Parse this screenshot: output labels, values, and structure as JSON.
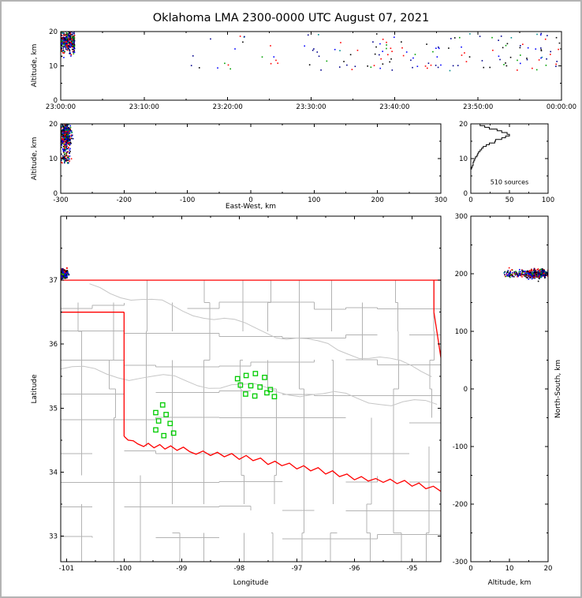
{
  "title": "Oklahoma LMA 2300-0000 UTC August 07, 2021",
  "colors": {
    "background": "#ffffff",
    "frame": "#b4b4b4",
    "axis": "#000000",
    "county_line": "#b3b3b3",
    "river_line": "#c6c6c6",
    "state_border": "#ff0000",
    "station_marker": "#00cc00",
    "histogram_line": "#000000",
    "source_palette": [
      "#00008b",
      "#0000ff",
      "#000000",
      "#ff0000",
      "#00a000",
      "#008b8b"
    ]
  },
  "chart_data": [
    {
      "id": "time_height_panel",
      "type": "scatter",
      "xlabel": "",
      "ylabel": "Altitude, km",
      "xlim_s": [
        0,
        3600
      ],
      "ylim_km": [
        0,
        20
      ],
      "xticks": [
        {
          "s": 0,
          "label": "23:00:00"
        },
        {
          "s": 600,
          "label": "23:10:00"
        },
        {
          "s": 1200,
          "label": "23:20:00"
        },
        {
          "s": 1800,
          "label": "23:30:00"
        },
        {
          "s": 2400,
          "label": "23:40:00"
        },
        {
          "s": 3000,
          "label": "23:50:00"
        },
        {
          "s": 3600,
          "label": "00:00:00"
        }
      ],
      "yticks_km": [
        0,
        10,
        20
      ]
    },
    {
      "id": "ew_height_panel",
      "type": "scatter",
      "xlabel": "East-West, km",
      "ylabel": "Altitude, km",
      "xlim_km": [
        -300,
        300
      ],
      "ylim_km": [
        0,
        20
      ],
      "xticks_km": [
        -300,
        -200,
        -100,
        0,
        100,
        200,
        300
      ],
      "yticks_km": [
        0,
        10,
        20
      ]
    },
    {
      "id": "altitude_histogram_panel",
      "type": "line",
      "annotation": "510 sources",
      "total_sources": 510,
      "xlim": [
        0,
        100
      ],
      "ylim_km": [
        0,
        20
      ],
      "xticks": [
        0,
        50,
        100
      ],
      "yticks_km": [
        0,
        10,
        20
      ],
      "bins": {
        "alt_start_km": 7.0,
        "alt_step_km": 0.5,
        "counts": [
          1,
          2,
          3,
          3,
          4,
          5,
          6,
          8,
          9,
          10,
          12,
          14,
          16,
          20,
          24,
          31,
          32,
          40,
          45,
          50,
          47,
          40,
          34,
          24,
          18,
          12
        ]
      }
    },
    {
      "id": "map_panel",
      "type": "scatter",
      "xlabel": "Longitude",
      "ylabel": "Latitude",
      "xlim_deg": [
        -101.1,
        -94.5
      ],
      "ylim_deg": [
        32.6,
        38.0
      ],
      "xticks_deg": [
        -101,
        -100,
        -99,
        -98,
        -97,
        -96,
        -95
      ],
      "yticks_deg": [
        33,
        34,
        35,
        36,
        37
      ],
      "stations_lon_lat": [
        [
          -99.33,
          35.05
        ],
        [
          -99.45,
          34.93
        ],
        [
          -99.27,
          34.9
        ],
        [
          -99.4,
          34.8
        ],
        [
          -99.2,
          34.76
        ],
        [
          -99.45,
          34.66
        ],
        [
          -99.31,
          34.57
        ],
        [
          -99.14,
          34.61
        ],
        [
          -98.03,
          35.46
        ],
        [
          -97.88,
          35.51
        ],
        [
          -97.72,
          35.54
        ],
        [
          -97.56,
          35.48
        ],
        [
          -97.98,
          35.36
        ],
        [
          -97.8,
          35.35
        ],
        [
          -97.64,
          35.33
        ],
        [
          -97.46,
          35.29
        ],
        [
          -97.89,
          35.22
        ],
        [
          -97.73,
          35.19
        ],
        [
          -97.52,
          35.24
        ],
        [
          -97.39,
          35.18
        ]
      ],
      "state_borders": [
        {
          "name": "kansas-37n",
          "pts": [
            [
              -101.1,
              37.0
            ],
            [
              -94.5,
              37.0
            ]
          ]
        },
        {
          "name": "ok-mo",
          "pts": [
            [
              -94.62,
              37.0
            ],
            [
              -94.62,
              36.5
            ]
          ]
        },
        {
          "name": "ok-ar",
          "pts": [
            [
              -94.62,
              36.5
            ],
            [
              -94.43,
              35.38
            ]
          ]
        },
        {
          "name": "panhandle-south",
          "pts": [
            [
              -101.1,
              36.5
            ],
            [
              -100.0,
              36.5
            ]
          ]
        },
        {
          "name": "ok-tx-west",
          "pts": [
            [
              -100.0,
              36.5
            ],
            [
              -100.0,
              34.56
            ]
          ]
        },
        {
          "name": "red-river",
          "pts": [
            [
              -100.0,
              34.56
            ],
            [
              -99.93,
              34.5
            ],
            [
              -99.84,
              34.49
            ],
            [
              -99.76,
              34.44
            ],
            [
              -99.66,
              34.4
            ],
            [
              -99.58,
              34.45
            ],
            [
              -99.48,
              34.38
            ],
            [
              -99.38,
              34.43
            ],
            [
              -99.29,
              34.36
            ],
            [
              -99.19,
              34.41
            ],
            [
              -99.08,
              34.34
            ],
            [
              -98.97,
              34.39
            ],
            [
              -98.86,
              34.32
            ],
            [
              -98.75,
              34.28
            ],
            [
              -98.63,
              34.33
            ],
            [
              -98.5,
              34.26
            ],
            [
              -98.38,
              34.31
            ],
            [
              -98.26,
              34.24
            ],
            [
              -98.13,
              34.29
            ],
            [
              -98.0,
              34.2
            ],
            [
              -97.88,
              34.26
            ],
            [
              -97.76,
              34.18
            ],
            [
              -97.63,
              34.22
            ],
            [
              -97.5,
              34.12
            ],
            [
              -97.38,
              34.17
            ],
            [
              -97.26,
              34.1
            ],
            [
              -97.13,
              34.14
            ],
            [
              -97.0,
              34.05
            ],
            [
              -96.88,
              34.1
            ],
            [
              -96.76,
              34.02
            ],
            [
              -96.63,
              34.07
            ],
            [
              -96.5,
              33.97
            ],
            [
              -96.38,
              34.02
            ],
            [
              -96.26,
              33.93
            ],
            [
              -96.13,
              33.97
            ],
            [
              -96.0,
              33.88
            ],
            [
              -95.88,
              33.93
            ],
            [
              -95.76,
              33.86
            ],
            [
              -95.63,
              33.9
            ],
            [
              -95.5,
              33.84
            ],
            [
              -95.38,
              33.89
            ],
            [
              -95.26,
              33.82
            ],
            [
              -95.13,
              33.87
            ],
            [
              -95.0,
              33.78
            ],
            [
              -94.88,
              33.83
            ],
            [
              -94.76,
              33.74
            ],
            [
              -94.63,
              33.78
            ],
            [
              -94.5,
              33.7
            ]
          ]
        }
      ],
      "counties": {
        "seed": 11,
        "lon_min": -101.1,
        "lon_max": -94.5,
        "lat_min": 32.6,
        "lat_max": 37.0,
        "col_step_deg": 0.55,
        "row_step_deg": 0.45,
        "jitter_deg": 0.18,
        "skip_prob": 0.13
      },
      "rivers": [
        {
          "from": [
            -101.1,
            35.62
          ],
          "to": [
            -94.5,
            35.02
          ],
          "amp_deg": 0.07
        },
        {
          "from": [
            -100.6,
            36.9
          ],
          "to": [
            -94.6,
            35.55
          ],
          "amp_deg": 0.06
        }
      ]
    },
    {
      "id": "ns_height_panel",
      "type": "scatter",
      "xlabel": "Altitude, km",
      "ylabel": "North-South, km",
      "xlim_km": [
        0,
        20
      ],
      "ylim_km": [
        -300,
        300
      ],
      "xticks_km": [
        0,
        10,
        20
      ],
      "yticks_km": [
        300,
        200,
        100,
        0,
        -100,
        -200,
        -300
      ]
    }
  ],
  "sources": {
    "seed": 42,
    "network_center_lon_lat": [
      -97.8,
      35.3
    ],
    "clusters": [
      {
        "name": "initial_burst",
        "count": 360,
        "t_s": [
          0,
          100
        ],
        "alt_km_mean": 17.0,
        "alt_km_sd": 1.6,
        "ew_km_mean": -292,
        "ew_km_sd": 4,
        "ns_km_mean": 200,
        "ns_km_sd": 3.5
      },
      {
        "name": "late_scattered",
        "count": 150,
        "t_s": [
          600,
          3600
        ],
        "alt_km_min": 8.5,
        "alt_km_max": 19.5,
        "ew_km_mean": -292,
        "ew_km_sd": 4,
        "ns_km_mean": 200,
        "ns_km_sd": 3.5
      }
    ]
  }
}
